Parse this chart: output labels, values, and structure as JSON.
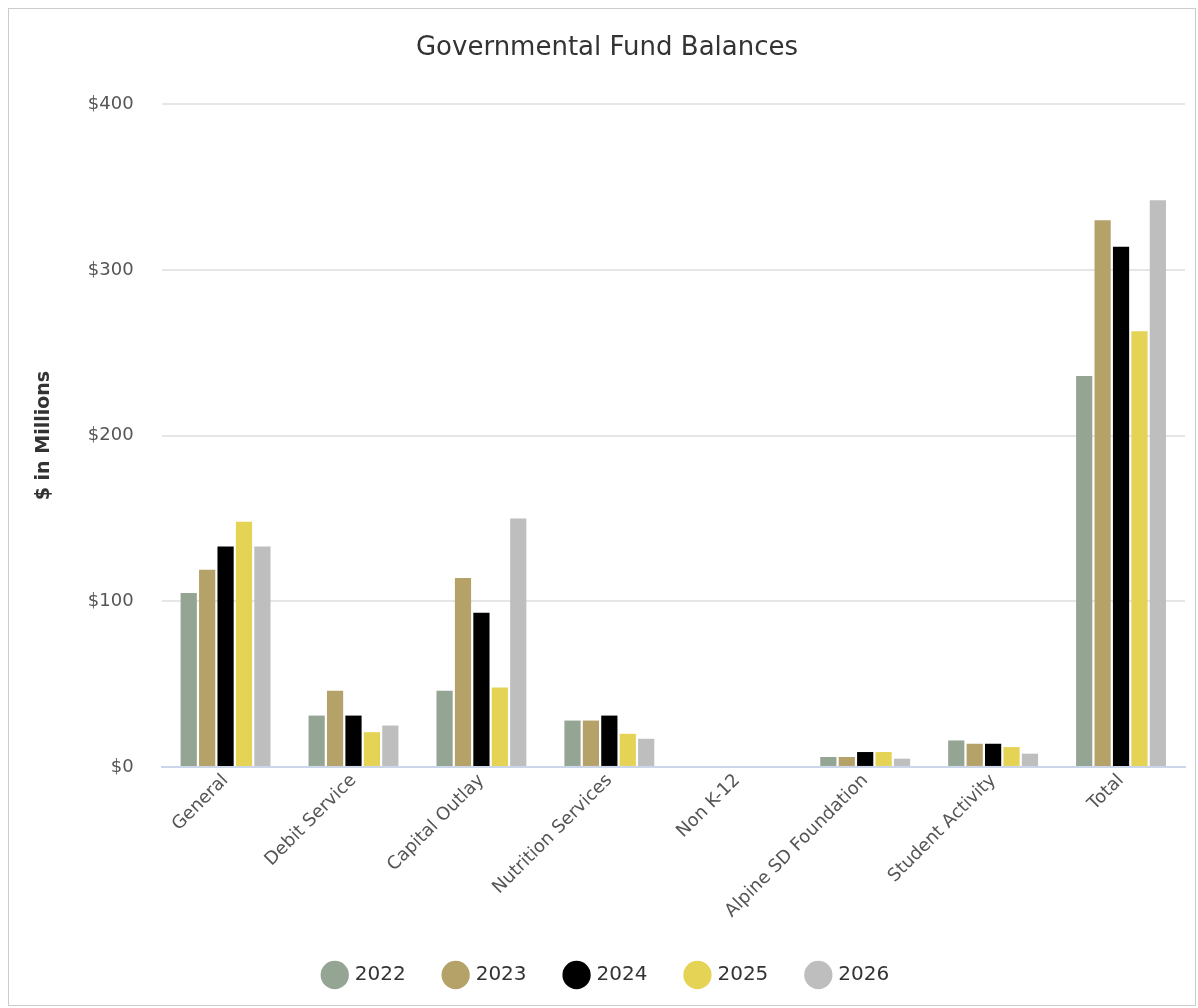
{
  "chart_data": {
    "type": "bar",
    "title": "Governmental Fund Balances",
    "ylabel": "$ in Millions",
    "categories": [
      "General",
      "Debit Service",
      "Capital Outlay",
      "Nutrition Services",
      "Non K-12",
      "Alpine SD Foundation",
      "Student Activity",
      "Total"
    ],
    "series": [
      {
        "name": "2022",
        "color": "#94a594",
        "values": [
          105,
          31,
          46,
          28,
          0,
          6,
          16,
          236
        ]
      },
      {
        "name": "2023",
        "color": "#b5a268",
        "values": [
          119,
          46,
          114,
          28,
          0,
          6,
          14,
          330
        ]
      },
      {
        "name": "2024",
        "color": "#000000",
        "values": [
          133,
          31,
          93,
          31,
          0,
          9,
          14,
          314
        ]
      },
      {
        "name": "2025",
        "color": "#e5d356",
        "values": [
          148,
          21,
          48,
          20,
          0,
          9,
          12,
          263
        ]
      },
      {
        "name": "2026",
        "color": "#bebebe",
        "values": [
          133,
          25,
          150,
          17,
          0,
          5,
          8,
          342
        ]
      }
    ],
    "ylim": [
      0,
      400
    ],
    "yticks": [
      {
        "value": 0,
        "label": "$0"
      },
      {
        "value": 100,
        "label": "$100"
      },
      {
        "value": 200,
        "label": "$200"
      },
      {
        "value": 300,
        "label": "$300"
      },
      {
        "value": 400,
        "label": "$400"
      }
    ],
    "grid": "y",
    "legend": "bottom"
  }
}
